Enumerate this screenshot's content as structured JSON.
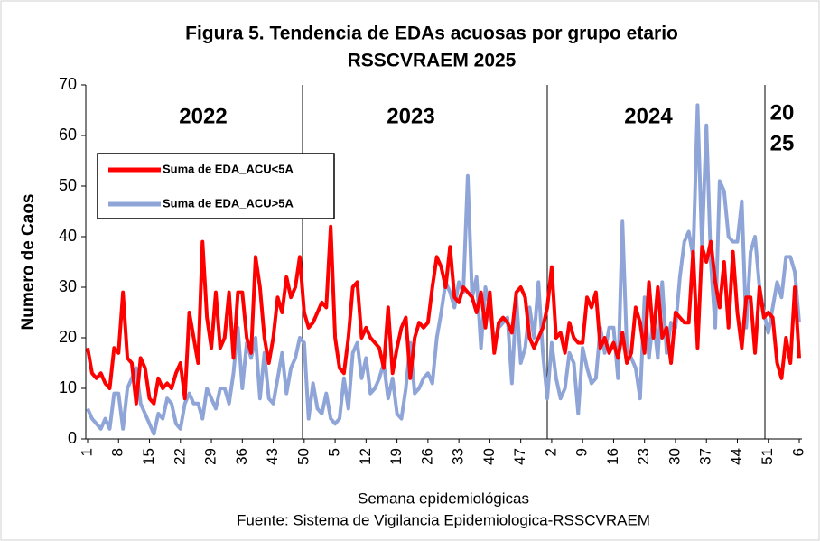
{
  "chart_data": {
    "type": "line",
    "title": [
      "Figura 5. Tendencia de EDAs acuosas por grupo etario",
      "RSSCVRAEM 2025"
    ],
    "x_label": "Semana epidemiológicas",
    "y_label": "Numero de Caos",
    "source": "Fuente: Sistema de Vigilancia Epidemiologica-RSSCVRAEM",
    "year_labels": [
      "2022",
      "2023",
      "2024",
      "20",
      "25"
    ],
    "categories": [
      "1",
      null,
      null,
      null,
      null,
      null,
      null,
      "8",
      null,
      null,
      null,
      null,
      null,
      null,
      "15",
      null,
      null,
      null,
      null,
      null,
      null,
      "22",
      null,
      null,
      null,
      null,
      null,
      null,
      "29",
      null,
      null,
      null,
      null,
      null,
      null,
      "36",
      null,
      null,
      null,
      null,
      null,
      null,
      "43",
      null,
      null,
      null,
      null,
      null,
      null,
      "50",
      null,
      null,
      null,
      null,
      null,
      null,
      "5",
      null,
      null,
      null,
      null,
      null,
      null,
      "12",
      null,
      null,
      null,
      null,
      null,
      null,
      "19",
      null,
      null,
      null,
      null,
      null,
      null,
      "26",
      null,
      null,
      null,
      null,
      null,
      null,
      "33",
      null,
      null,
      null,
      null,
      null,
      null,
      "40",
      null,
      null,
      null,
      null,
      null,
      null,
      "47",
      null,
      null,
      null,
      null,
      null,
      null,
      "2",
      null,
      null,
      null,
      null,
      null,
      null,
      "9",
      null,
      null,
      null,
      null,
      null,
      null,
      "16",
      null,
      null,
      null,
      null,
      null,
      null,
      "23",
      null,
      null,
      null,
      null,
      null,
      null,
      "30",
      null,
      null,
      null,
      null,
      null,
      null,
      "37",
      null,
      null,
      null,
      null,
      null,
      null,
      "44",
      null,
      null,
      null,
      null,
      null,
      null,
      "51",
      null,
      null,
      null,
      null,
      null,
      null,
      "6"
    ],
    "series": [
      {
        "name": "Suma de EDA_ACU<5A",
        "color": "#ff0000",
        "values": [
          18,
          13,
          12,
          13,
          11,
          10,
          18,
          17,
          29,
          16,
          15,
          7,
          16,
          14,
          8,
          7,
          12,
          10,
          11,
          10,
          13,
          15,
          8,
          25,
          20,
          15,
          39,
          24,
          18,
          29,
          18,
          20,
          29,
          16,
          29,
          29,
          20,
          17,
          36,
          30,
          20,
          15,
          20,
          28,
          25,
          32,
          28,
          30,
          36,
          25,
          22,
          23,
          25,
          27,
          26,
          42,
          20,
          14,
          13,
          20,
          30,
          31,
          20,
          22,
          20,
          19,
          18,
          14,
          26,
          13,
          18,
          22,
          24,
          12,
          20,
          23,
          22,
          23,
          30,
          36,
          34,
          30,
          38,
          28,
          27,
          30,
          29,
          28,
          25,
          29,
          22,
          29,
          17,
          23,
          24,
          23,
          21,
          29,
          30,
          28,
          20,
          18,
          20,
          22,
          26,
          34,
          20,
          21,
          17,
          23,
          20,
          19,
          19,
          28,
          26,
          29,
          18,
          20,
          17,
          19,
          16,
          21,
          15,
          17,
          26,
          23,
          17,
          31,
          20,
          30,
          20,
          22,
          15,
          25,
          24,
          23,
          23,
          37,
          18,
          38,
          35,
          39,
          31,
          26,
          35,
          22,
          37,
          25,
          18,
          28,
          28,
          17,
          30,
          24,
          25,
          24,
          15,
          12,
          20,
          15,
          30,
          16
        ]
      },
      {
        "name": "Suma de EDA_ACU>5A",
        "color": "#8fa5d8",
        "values": [
          6,
          4,
          3,
          2,
          4,
          2,
          9,
          9,
          2,
          10,
          12,
          14,
          7,
          5,
          3,
          1,
          5,
          4,
          8,
          7,
          3,
          2,
          7,
          9,
          7,
          7,
          4,
          10,
          8,
          6,
          10,
          10,
          7,
          13,
          22,
          10,
          19,
          16,
          20,
          8,
          17,
          8,
          7,
          12,
          17,
          9,
          14,
          16,
          20,
          19,
          4,
          11,
          6,
          5,
          9,
          4,
          3,
          4,
          12,
          6,
          17,
          19,
          12,
          16,
          9,
          10,
          12,
          15,
          8,
          12,
          5,
          4,
          10,
          19,
          9,
          10,
          12,
          13,
          11,
          20,
          25,
          31,
          29,
          26,
          31,
          29,
          52,
          28,
          32,
          18,
          30,
          26,
          19,
          22,
          23,
          24,
          11,
          28,
          15,
          18,
          26,
          20,
          31,
          17,
          8,
          19,
          12,
          8,
          10,
          17,
          15,
          5,
          18,
          14,
          11,
          12,
          22,
          17,
          22,
          22,
          12,
          43,
          18,
          16,
          14,
          8,
          28,
          16,
          24,
          16,
          31,
          17,
          23,
          22,
          32,
          39,
          41,
          36,
          66,
          38,
          62,
          35,
          22,
          51,
          49,
          40,
          39,
          39,
          47,
          22,
          37,
          40,
          30,
          25,
          21,
          26,
          31,
          28,
          36,
          36,
          33,
          23
        ]
      }
    ],
    "ylim": [
      0,
      70
    ],
    "yticks": [
      0,
      10,
      20,
      30,
      40,
      50,
      60,
      70
    ]
  }
}
